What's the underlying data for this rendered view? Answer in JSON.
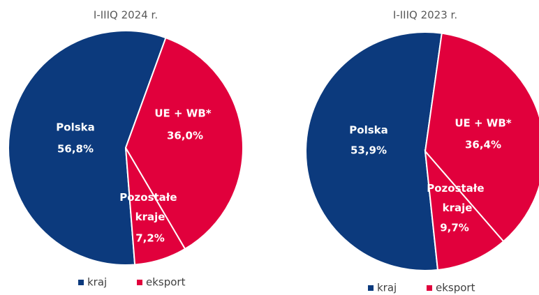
{
  "chart_data": [
    {
      "type": "pie",
      "title": "I-IIIQ 2024 r.",
      "categories": [
        "Polska",
        "UE + WB*",
        "Pozostałe kraje"
      ],
      "values": [
        56.8,
        36.0,
        7.2
      ],
      "value_labels": [
        "56,8%",
        "36,0%",
        "7,2%"
      ],
      "colors": [
        "#0c3a7d",
        "#e1003c",
        "#e1003c"
      ],
      "legend": [
        {
          "name": "kraj",
          "color": "#0c3a7d"
        },
        {
          "name": "eksport",
          "color": "#e1003c"
        }
      ]
    },
    {
      "type": "pie",
      "title": "I-IIIQ 2023 r.",
      "categories": [
        "Polska",
        "UE + WB*",
        "Pozostałe kraje"
      ],
      "values": [
        53.9,
        36.4,
        9.7
      ],
      "value_labels": [
        "53,9%",
        "36,4%",
        "9,7%"
      ],
      "colors": [
        "#0c3a7d",
        "#e1003c",
        "#e1003c"
      ],
      "legend": [
        {
          "name": "kraj",
          "color": "#0c3a7d"
        },
        {
          "name": "eksport",
          "color": "#e1003c"
        }
      ]
    }
  ]
}
